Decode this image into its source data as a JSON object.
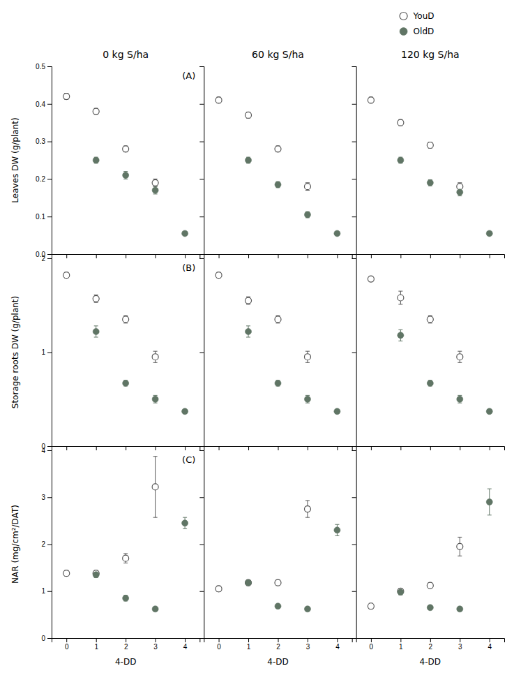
{
  "chart_data": [
    {
      "type": "scatter",
      "title": "0 kg S/ha",
      "annotations": [
        "(A)"
      ],
      "ylabel": "Leaves DW (g/plant)",
      "x": [
        0,
        1,
        2,
        3,
        4
      ],
      "xlim": [
        -0.5,
        4.5
      ],
      "xticks": [
        0,
        1,
        2,
        3,
        4
      ],
      "ylim": [
        0,
        0.5
      ],
      "yticks": [
        {
          "value": 0,
          "label": "0.0"
        },
        0.1,
        0.2,
        0.3,
        0.4,
        0.5
      ],
      "tick_labels": "y",
      "series": [
        {
          "name": "YouD",
          "color": "#555555",
          "marker": "open-circle",
          "values": [
            0.42,
            0.38,
            0.28,
            0.19,
            null
          ],
          "errors": [
            0.008,
            0.008,
            0.008,
            0.01,
            null
          ]
        },
        {
          "name": "OldD",
          "color": "#607565",
          "marker": "circle",
          "values": [
            null,
            0.25,
            0.21,
            0.17,
            0.055
          ],
          "errors": [
            null,
            0.008,
            0.01,
            0.01,
            0.003
          ]
        }
      ]
    },
    {
      "type": "scatter",
      "title": "60 kg S/ha",
      "x": [
        0,
        1,
        2,
        3,
        4
      ],
      "xlim": [
        -0.5,
        4.5
      ],
      "xticks": [
        0,
        1,
        2,
        3,
        4
      ],
      "ylim": [
        0,
        0.5
      ],
      "yticks": [
        {
          "value": 0,
          "label": "0.0"
        },
        0.1,
        0.2,
        0.3,
        0.4,
        0.5
      ],
      "tick_labels": false,
      "series": [
        {
          "name": "YouD",
          "color": "#555555",
          "marker": "open-circle",
          "values": [
            0.41,
            0.37,
            0.28,
            0.18,
            null
          ],
          "errors": [
            0.008,
            0.008,
            0.008,
            0.01,
            null
          ]
        },
        {
          "name": "OldD",
          "color": "#607565",
          "marker": "circle",
          "values": [
            null,
            0.25,
            0.185,
            0.105,
            0.055
          ],
          "errors": [
            null,
            0.008,
            0.008,
            0.008,
            0.003
          ]
        }
      ]
    },
    {
      "type": "scatter",
      "title": "120 kg S/ha",
      "legend": "top",
      "x": [
        0,
        1,
        2,
        3,
        4
      ],
      "xlim": [
        -0.5,
        4.5
      ],
      "xticks": [
        0,
        1,
        2,
        3,
        4
      ],
      "ylim": [
        0,
        0.5
      ],
      "yticks": [
        {
          "value": 0,
          "label": "0.0"
        },
        0.1,
        0.2,
        0.3,
        0.4,
        0.5
      ],
      "tick_labels": false,
      "series": [
        {
          "name": "YouD",
          "color": "#555555",
          "marker": "open-circle",
          "values": [
            0.41,
            0.35,
            0.29,
            0.18,
            null
          ],
          "errors": [
            0.008,
            0.008,
            0.008,
            0.01,
            null
          ]
        },
        {
          "name": "OldD",
          "color": "#607565",
          "marker": "circle",
          "values": [
            null,
            0.25,
            0.19,
            0.165,
            0.055
          ],
          "errors": [
            null,
            0.008,
            0.008,
            0.01,
            0.003
          ]
        }
      ]
    },
    {
      "type": "scatter",
      "annotations": [
        "(B)"
      ],
      "ylabel": "Storage roots DW (g/plant)",
      "x": [
        0,
        1,
        2,
        3,
        4
      ],
      "xlim": [
        -0.5,
        4.5
      ],
      "xticks": [
        0,
        1,
        2,
        3,
        4
      ],
      "ylim": [
        0,
        2
      ],
      "yticks": [
        0,
        1,
        2
      ],
      "tick_labels": "y",
      "series": [
        {
          "name": "YouD",
          "color": "#555555",
          "marker": "open-circle",
          "values": [
            1.82,
            1.57,
            1.35,
            0.95,
            null
          ],
          "errors": [
            0.03,
            0.04,
            0.04,
            0.06,
            null
          ]
        },
        {
          "name": "OldD",
          "color": "#607565",
          "marker": "circle",
          "values": [
            null,
            1.22,
            0.67,
            0.5,
            0.37
          ],
          "errors": [
            null,
            0.06,
            0.03,
            0.04,
            0.02
          ]
        }
      ]
    },
    {
      "type": "scatter",
      "x": [
        0,
        1,
        2,
        3,
        4
      ],
      "xlim": [
        -0.5,
        4.5
      ],
      "xticks": [
        0,
        1,
        2,
        3,
        4
      ],
      "ylim": [
        0,
        2
      ],
      "yticks": [
        0,
        1,
        2
      ],
      "tick_labels": false,
      "series": [
        {
          "name": "YouD",
          "color": "#555555",
          "marker": "open-circle",
          "values": [
            1.82,
            1.55,
            1.35,
            0.95,
            null
          ],
          "errors": [
            0.03,
            0.04,
            0.04,
            0.06,
            null
          ]
        },
        {
          "name": "OldD",
          "color": "#607565",
          "marker": "circle",
          "values": [
            null,
            1.22,
            0.67,
            0.5,
            0.37
          ],
          "errors": [
            null,
            0.06,
            0.03,
            0.04,
            0.02
          ]
        }
      ]
    },
    {
      "type": "scatter",
      "x": [
        0,
        1,
        2,
        3,
        4
      ],
      "xlim": [
        -0.5,
        4.5
      ],
      "xticks": [
        0,
        1,
        2,
        3,
        4
      ],
      "ylim": [
        0,
        2
      ],
      "yticks": [
        0,
        1,
        2
      ],
      "tick_labels": false,
      "series": [
        {
          "name": "YouD",
          "color": "#555555",
          "marker": "open-circle",
          "values": [
            1.78,
            1.58,
            1.35,
            0.95,
            null
          ],
          "errors": [
            0.03,
            0.07,
            0.04,
            0.06,
            null
          ]
        },
        {
          "name": "OldD",
          "color": "#607565",
          "marker": "circle",
          "values": [
            null,
            1.18,
            0.67,
            0.5,
            0.37
          ],
          "errors": [
            null,
            0.06,
            0.03,
            0.04,
            0.02
          ]
        }
      ]
    },
    {
      "type": "scatter",
      "annotations": [
        "(C)"
      ],
      "ylabel": "NAR (mg/cm²/DAT)",
      "xlabel": "4-DD",
      "x": [
        0,
        1,
        2,
        3,
        4
      ],
      "xlim": [
        -0.5,
        4.5
      ],
      "xticks": [
        0,
        1,
        2,
        3,
        4
      ],
      "ylim": [
        0,
        4
      ],
      "yticks": [
        0,
        1,
        2,
        3,
        4
      ],
      "series": [
        {
          "name": "YouD",
          "color": "#555555",
          "marker": "open-circle",
          "values": [
            1.38,
            1.38,
            1.7,
            3.22,
            null
          ],
          "errors": [
            0.06,
            0.06,
            0.1,
            0.65,
            null
          ]
        },
        {
          "name": "OldD",
          "color": "#607565",
          "marker": "circle",
          "values": [
            null,
            1.35,
            0.85,
            0.62,
            2.45
          ],
          "errors": [
            null,
            0.06,
            0.06,
            0.04,
            0.12
          ]
        }
      ]
    },
    {
      "type": "scatter",
      "xlabel": "4-DD",
      "x": [
        0,
        1,
        2,
        3,
        4
      ],
      "xlim": [
        -0.5,
        4.5
      ],
      "xticks": [
        0,
        1,
        2,
        3,
        4
      ],
      "ylim": [
        0,
        4
      ],
      "yticks": [
        0,
        1,
        2,
        3,
        4
      ],
      "tick_labels": "x",
      "series": [
        {
          "name": "YouD",
          "color": "#555555",
          "marker": "open-circle",
          "values": [
            1.05,
            1.18,
            1.18,
            2.75,
            null
          ],
          "errors": [
            0.06,
            0.06,
            0.06,
            0.18,
            null
          ]
        },
        {
          "name": "OldD",
          "color": "#607565",
          "marker": "circle",
          "values": [
            null,
            1.18,
            0.68,
            0.62,
            2.3
          ],
          "errors": [
            null,
            0.06,
            0.04,
            0.04,
            0.12
          ]
        }
      ]
    },
    {
      "type": "scatter",
      "xlabel": "4-DD",
      "x": [
        0,
        1,
        2,
        3,
        4
      ],
      "xlim": [
        -0.5,
        4.5
      ],
      "xticks": [
        0,
        1,
        2,
        3,
        4
      ],
      "ylim": [
        0,
        4
      ],
      "yticks": [
        0,
        1,
        2,
        3,
        4
      ],
      "tick_labels": "x",
      "series": [
        {
          "name": "YouD",
          "color": "#555555",
          "marker": "open-circle",
          "values": [
            0.68,
            1.0,
            1.12,
            1.95,
            null
          ],
          "errors": [
            0.06,
            0.06,
            0.06,
            0.2,
            null
          ]
        },
        {
          "name": "OldD",
          "color": "#607565",
          "marker": "circle",
          "values": [
            null,
            0.98,
            0.65,
            0.62,
            2.9
          ],
          "errors": [
            null,
            0.06,
            0.04,
            0.04,
            0.28
          ]
        }
      ]
    }
  ]
}
